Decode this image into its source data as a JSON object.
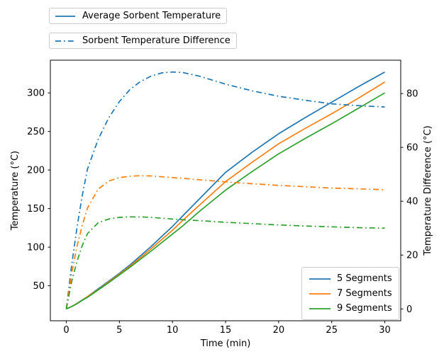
{
  "figure": {
    "background": "#ffffff",
    "top_legends": [
      {
        "label": "Average Sorbent Temperature",
        "style": "solid",
        "color": "#1f77b4"
      },
      {
        "label": "Sorbent Temperature Difference",
        "style": "dashdot",
        "color": "#1f77b4"
      }
    ],
    "inner_legend": [
      {
        "label": "5 Segments",
        "color": "#1f77b4"
      },
      {
        "label": "7 Segments",
        "color": "#ff7f0e"
      },
      {
        "label": "9 Segments",
        "color": "#2ca02c"
      }
    ]
  },
  "chart_data": {
    "type": "line",
    "title": "",
    "xlabel": "Time (min)",
    "ylabel_left": "Temperature (°C)",
    "ylabel_right": "Temperature Difference (°C)",
    "xlim": [
      -1.5,
      31.5
    ],
    "ylim_left": [
      4.6,
      342.4
    ],
    "ylim_right": [
      -4.4,
      92.4
    ],
    "xticks": [
      0,
      5,
      10,
      15,
      20,
      25,
      30
    ],
    "yticks_left": [
      50,
      100,
      150,
      200,
      250,
      300
    ],
    "yticks_right": [
      0,
      20,
      40,
      60,
      80
    ],
    "grid": false,
    "legend_position_top": "outside upper left (stacked boxes)",
    "legend_position_inner": "lower right",
    "x": [
      0,
      0.5,
      1,
      1.5,
      2,
      3,
      4,
      5,
      6,
      7,
      8,
      9,
      10,
      11,
      12.5,
      15,
      17.5,
      20,
      22.5,
      25,
      27.5,
      30
    ],
    "series": [
      {
        "name": "Average Sorbent Temperature (5 Segments)",
        "legend": "5 Segments",
        "axis": "left",
        "style": "solid",
        "color": "#1f77b4",
        "values": [
          20,
          23,
          27,
          31.5,
          36,
          46,
          56,
          66,
          77,
          89,
          101,
          114,
          127,
          141,
          162,
          197,
          223,
          247,
          268,
          288,
          308,
          327
        ]
      },
      {
        "name": "Average Sorbent Temperature (7 Segments)",
        "legend": "7 Segments",
        "axis": "left",
        "style": "solid",
        "color": "#ff7f0e",
        "values": [
          20,
          23,
          27,
          31,
          36,
          45,
          55,
          65,
          75.5,
          86.5,
          98,
          110,
          122,
          135,
          154,
          185,
          210,
          234,
          254,
          273,
          293,
          314
        ]
      },
      {
        "name": "Average Sorbent Temperature (9 Segments)",
        "legend": "9 Segments",
        "axis": "left",
        "style": "solid",
        "color": "#2ca02c",
        "values": [
          20,
          23,
          26.5,
          31,
          35,
          44.5,
          54,
          64,
          74,
          84.5,
          95,
          106,
          117,
          128,
          146,
          174,
          198,
          221,
          241,
          260,
          280,
          300
        ]
      },
      {
        "name": "Sorbent Temperature Difference (5 Segments)",
        "legend": "5 Segments",
        "axis": "right",
        "style": "dashdot",
        "color": "#1f77b4",
        "values": [
          0,
          16,
          30,
          42,
          52,
          63,
          71,
          77,
          81.5,
          84.5,
          86.5,
          87.7,
          88,
          87.8,
          86.5,
          83.5,
          81,
          79,
          77.5,
          76.2,
          75.5,
          75
        ]
      },
      {
        "name": "Sorbent Temperature Difference (7 Segments)",
        "legend": "7 Segments",
        "axis": "right",
        "style": "dashdot",
        "color": "#ff7f0e",
        "values": [
          0,
          13,
          23,
          31,
          37.5,
          44.5,
          47.5,
          48.8,
          49.3,
          49.5,
          49.4,
          49.1,
          48.8,
          48.5,
          48,
          47.2,
          46.5,
          45.9,
          45.4,
          44.9,
          44.6,
          44.3
        ]
      },
      {
        "name": "Sorbent Temperature Difference (9 Segments)",
        "legend": "9 Segments",
        "axis": "right",
        "style": "dashdot",
        "color": "#2ca02c",
        "values": [
          0,
          10,
          17.5,
          23.5,
          28,
          32,
          33.4,
          34,
          34.2,
          34.2,
          34,
          33.7,
          33.4,
          33.1,
          32.8,
          32.2,
          31.7,
          31.2,
          30.8,
          30.5,
          30.2,
          30
        ]
      }
    ]
  }
}
